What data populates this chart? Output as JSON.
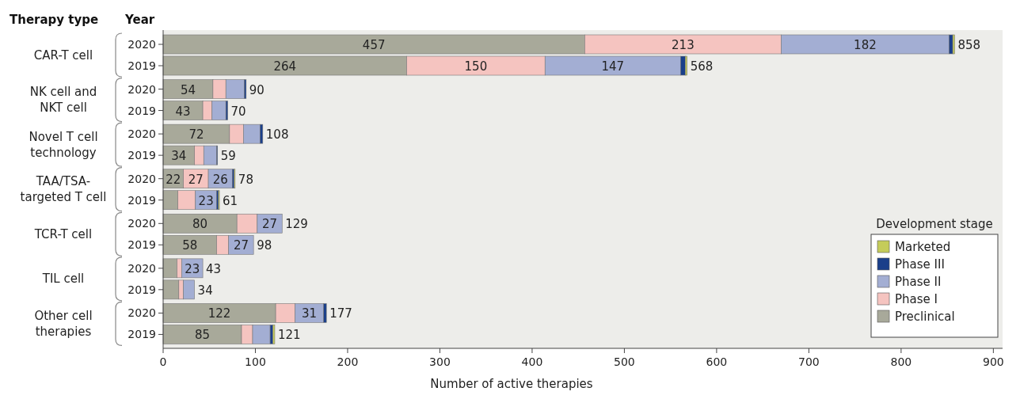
{
  "chart_data": {
    "type": "bar",
    "orientation": "horizontal",
    "stacked": true,
    "xlabel": "Number of active therapies",
    "ylabel": "Year",
    "legend_title": "Development stage",
    "legend": "bottom right",
    "grid": false,
    "categories": [
      "2020",
      "2019",
      "2020",
      "2019",
      "2020",
      "2019",
      "2020",
      "2019",
      "2020",
      "2019",
      "2020",
      "2019",
      "2020",
      "2019"
    ],
    "annotations": [
      "Therapy type",
      "CAR-T cell",
      "NK cell and NKT cell",
      "Novel T cell technology",
      "TAA/TSA-targeted T cell",
      "TCR-T cell",
      "TIL cell",
      "Other cell therapies"
    ],
    "xlim": [
      0,
      910
    ],
    "xticks": [
      0,
      100,
      200,
      300,
      400,
      500,
      600,
      700,
      800,
      900
    ],
    "series": [
      {
        "name": "Preclinical",
        "color": "#a8a99a",
        "values": [
          457,
          264,
          54,
          43,
          72,
          34,
          22,
          16,
          80,
          58,
          15,
          17,
          122,
          85
        ],
        "value_labels": [
          "457",
          "264",
          "54",
          "43",
          "72",
          "34",
          "22",
          null,
          "80",
          "58",
          null,
          null,
          "122",
          "85"
        ]
      },
      {
        "name": "Phase I",
        "color": "#f5c4c0",
        "values": [
          213,
          150,
          14,
          10,
          15,
          10,
          27,
          19,
          22,
          13,
          5,
          5,
          21,
          12
        ],
        "value_labels": [
          "213",
          "150",
          null,
          null,
          null,
          null,
          "27",
          null,
          null,
          null,
          null,
          null,
          null,
          null
        ]
      },
      {
        "name": "Phase II",
        "color": "#a3aed3",
        "values": [
          182,
          147,
          20,
          15,
          18,
          14,
          26,
          23,
          27,
          27,
          23,
          12,
          31,
          19
        ],
        "value_labels": [
          "182",
          "147",
          null,
          null,
          null,
          null,
          "26",
          "23",
          "27",
          "27",
          "23",
          null,
          "31",
          null
        ]
      },
      {
        "name": "Phase III",
        "color": "#1a3f8a",
        "values": [
          4,
          5,
          2,
          2,
          3,
          1,
          2,
          2,
          0,
          0,
          0,
          0,
          3,
          3
        ]
      },
      {
        "name": "Marketed",
        "color": "#c5cc5a",
        "values": [
          2,
          2,
          0,
          0,
          0,
          0,
          1,
          1,
          0,
          0,
          0,
          0,
          0,
          2
        ]
      }
    ],
    "totals": [
      "858",
      "568",
      "90",
      "70",
      "108",
      "59",
      "78",
      "61",
      "129",
      "98",
      "43",
      "34",
      "177",
      "121"
    ]
  }
}
